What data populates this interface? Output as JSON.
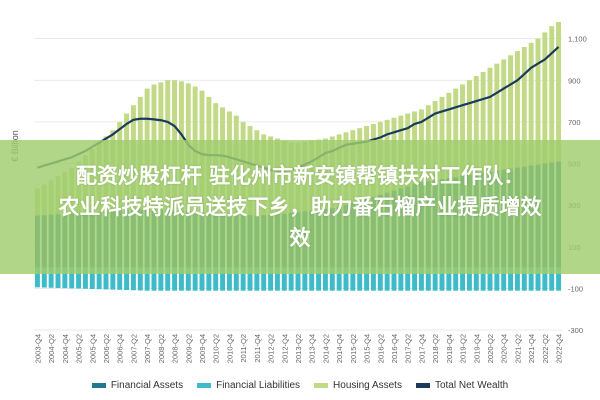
{
  "chart_data": {
    "type": "bar",
    "ylabel": "€ Billion",
    "yticks": [
      1100,
      900,
      700,
      500,
      300,
      100,
      -100,
      -300
    ],
    "ylim": [
      -300,
      1180
    ],
    "x": [
      "2003-Q4",
      "2004-Q1",
      "2004-Q2",
      "2004-Q3",
      "2004-Q4",
      "2005-Q1",
      "2005-Q2",
      "2005-Q3",
      "2005-Q4",
      "2006-Q1",
      "2006-Q2",
      "2006-Q3",
      "2006-Q4",
      "2007-Q1",
      "2007-Q2",
      "2007-Q3",
      "2007-Q4",
      "2008-Q1",
      "2008-Q2",
      "2008-Q3",
      "2008-Q4",
      "2009-Q1",
      "2009-Q2",
      "2009-Q3",
      "2009-Q4",
      "2010-Q1",
      "2010-Q2",
      "2010-Q3",
      "2010-Q4",
      "2011-Q1",
      "2011-Q2",
      "2011-Q3",
      "2011-Q4",
      "2012-Q1",
      "2012-Q2",
      "2012-Q3",
      "2012-Q4",
      "2013-Q1",
      "2013-Q2",
      "2013-Q3",
      "2013-Q4",
      "2014-Q1",
      "2014-Q2",
      "2014-Q3",
      "2014-Q4",
      "2015-Q1",
      "2015-Q2",
      "2015-Q3",
      "2015-Q4",
      "2016-Q1",
      "2016-Q2",
      "2016-Q3",
      "2016-Q4",
      "2017-Q1",
      "2017-Q2",
      "2017-Q3",
      "2017-Q4",
      "2018-Q1",
      "2018-Q2",
      "2018-Q3",
      "2018-Q4",
      "2019-Q1",
      "2019-Q2",
      "2019-Q3",
      "2019-Q4",
      "2020-Q1",
      "2020-Q2",
      "2020-Q3",
      "2020-Q4",
      "2021-Q1",
      "2021-Q2",
      "2021-Q3",
      "2021-Q4",
      "2022-Q1",
      "2022-Q2",
      "2022-Q3",
      "2022-Q4"
    ],
    "xtick_labels": [
      "2003-Q4",
      "2004-Q2",
      "2004-Q4",
      "2005-Q2",
      "2005-Q4",
      "2006-Q2",
      "2006-Q4",
      "2007-Q2",
      "2007-Q4",
      "2008-Q2",
      "2008-Q4",
      "2009-Q2",
      "2009-Q4",
      "2010-Q2",
      "2010-Q4",
      "2011-Q2",
      "2011-Q4",
      "2012-Q2",
      "2012-Q4",
      "2013-Q2",
      "2013-Q4",
      "2014-Q2",
      "2014-Q4",
      "2015-Q2",
      "2015-Q4",
      "2016-Q2",
      "2016-Q4",
      "2017-Q2",
      "2017-Q4",
      "2018-Q2",
      "2018-Q4",
      "2019-Q2",
      "2019-Q4",
      "2020-Q2",
      "2020-Q4",
      "2021-Q2",
      "2021-Q4",
      "2022-Q2",
      "2022-Q4"
    ],
    "series": [
      {
        "name": "Financial Assets",
        "color": "#1f7a8c",
        "kind": "bar",
        "values": [
          250,
          252,
          254,
          256,
          258,
          260,
          262,
          264,
          266,
          268,
          270,
          272,
          274,
          276,
          278,
          280,
          282,
          280,
          278,
          276,
          274,
          272,
          270,
          268,
          266,
          264,
          262,
          260,
          258,
          256,
          254,
          252,
          250,
          252,
          254,
          256,
          258,
          262,
          266,
          270,
          274,
          278,
          282,
          286,
          290,
          300,
          310,
          320,
          330,
          340,
          350,
          360,
          370,
          380,
          390,
          400,
          410,
          415,
          420,
          425,
          430,
          435,
          440,
          445,
          450,
          455,
          460,
          465,
          470,
          475,
          480,
          485,
          490,
          495,
          500,
          505,
          510
        ]
      },
      {
        "name": "Financial Liabilities",
        "color": "#3bbcc8",
        "kind": "bar",
        "values": [
          -95,
          -96,
          -97,
          -98,
          -99,
          -100,
          -101,
          -102,
          -103,
          -104,
          -105,
          -106,
          -107,
          -108,
          -109,
          -110,
          -111,
          -111,
          -111,
          -111,
          -111,
          -111,
          -111,
          -111,
          -111,
          -111,
          -111,
          -111,
          -111,
          -111,
          -111,
          -111,
          -111,
          -111,
          -111,
          -111,
          -111,
          -111,
          -111,
          -111,
          -111,
          -111,
          -111,
          -111,
          -111,
          -111,
          -111,
          -111,
          -111,
          -111,
          -111,
          -111,
          -111,
          -111,
          -111,
          -111,
          -111,
          -111,
          -111,
          -111,
          -111,
          -111,
          -111,
          -111,
          -111,
          -111,
          -111,
          -111,
          -111,
          -111,
          -111,
          -111,
          -111,
          -111,
          -111,
          -111,
          -111
        ]
      },
      {
        "name": "Housing Assets",
        "color": "#c2d985",
        "kind": "bar",
        "values": [
          380,
          400,
          420,
          440,
          460,
          480,
          510,
          540,
          570,
          600,
          630,
          660,
          700,
          740,
          780,
          820,
          860,
          880,
          890,
          900,
          900,
          895,
          885,
          870,
          850,
          820,
          790,
          770,
          750,
          730,
          700,
          680,
          660,
          640,
          630,
          620,
          610,
          600,
          600,
          605,
          610,
          615,
          620,
          630,
          640,
          650,
          660,
          670,
          680,
          690,
          700,
          710,
          720,
          730,
          740,
          750,
          760,
          780,
          800,
          820,
          840,
          860,
          880,
          900,
          920,
          940,
          960,
          980,
          1000,
          1020,
          1040,
          1060,
          1080,
          1100,
          1130,
          1160,
          1180
        ]
      },
      {
        "name": "Total Net Wealth",
        "color": "#1b3a5c",
        "kind": "line",
        "values": [
          480,
          490,
          500,
          510,
          520,
          530,
          545,
          560,
          580,
          600,
          620,
          640,
          665,
          690,
          710,
          715,
          715,
          712,
          708,
          700,
          680,
          640,
          590,
          560,
          545,
          540,
          540,
          538,
          530,
          520,
          510,
          500,
          490,
          480,
          470,
          465,
          465,
          470,
          480,
          495,
          510,
          530,
          550,
          560,
          575,
          590,
          595,
          600,
          605,
          615,
          625,
          640,
          650,
          660,
          670,
          690,
          700,
          720,
          740,
          750,
          760,
          770,
          780,
          790,
          800,
          810,
          820,
          840,
          860,
          880,
          900,
          930,
          960,
          980,
          1000,
          1030,
          1060
        ]
      }
    ],
    "grid": true,
    "legend_position": "bottom"
  },
  "banner": {
    "line1": "配资炒股杠杆 驻化州市新安镇帮镇扶村工作队：",
    "line2": "农业科技特派员送技下乡，助力番石榴产业提质增效",
    "line3": "效"
  },
  "legend": [
    {
      "label": "Financial Assets",
      "color": "#1f7a8c"
    },
    {
      "label": "Financial Liabilities",
      "color": "#3bbcc8"
    },
    {
      "label": "Housing Assets",
      "color": "#c2d985"
    },
    {
      "label": "Total Net Wealth",
      "color": "#1b3a5c"
    }
  ]
}
